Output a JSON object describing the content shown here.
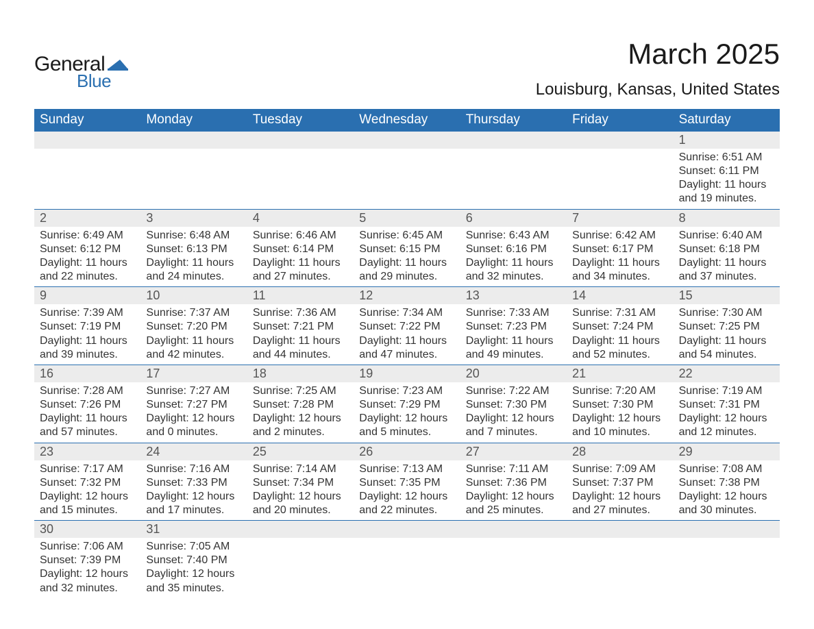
{
  "logo": {
    "text_general": "General",
    "text_blue": "Blue",
    "mark_color": "#2a6fb0",
    "text_general_color": "#1a1a1a",
    "text_blue_color": "#2a6fb0"
  },
  "header": {
    "title": "March 2025",
    "location": "Louisburg, Kansas, United States",
    "title_fontsize": 42,
    "location_fontsize": 24,
    "text_color": "#1a1a1a"
  },
  "calendar": {
    "header_bg": "#2a6fb0",
    "header_text_color": "#ffffff",
    "daynum_bg": "#ececec",
    "daynum_color": "#555555",
    "detail_color": "#333333",
    "week_border_color": "#2a6fb0",
    "background_color": "#ffffff",
    "day_names": [
      "Sunday",
      "Monday",
      "Tuesday",
      "Wednesday",
      "Thursday",
      "Friday",
      "Saturday"
    ],
    "weeks": [
      {
        "days": [
          {
            "num": "",
            "sunrise": "",
            "sunset": "",
            "daylight": ""
          },
          {
            "num": "",
            "sunrise": "",
            "sunset": "",
            "daylight": ""
          },
          {
            "num": "",
            "sunrise": "",
            "sunset": "",
            "daylight": ""
          },
          {
            "num": "",
            "sunrise": "",
            "sunset": "",
            "daylight": ""
          },
          {
            "num": "",
            "sunrise": "",
            "sunset": "",
            "daylight": ""
          },
          {
            "num": "",
            "sunrise": "",
            "sunset": "",
            "daylight": ""
          },
          {
            "num": "1",
            "sunrise": "Sunrise: 6:51 AM",
            "sunset": "Sunset: 6:11 PM",
            "daylight": "Daylight: 11 hours and 19 minutes."
          }
        ]
      },
      {
        "days": [
          {
            "num": "2",
            "sunrise": "Sunrise: 6:49 AM",
            "sunset": "Sunset: 6:12 PM",
            "daylight": "Daylight: 11 hours and 22 minutes."
          },
          {
            "num": "3",
            "sunrise": "Sunrise: 6:48 AM",
            "sunset": "Sunset: 6:13 PM",
            "daylight": "Daylight: 11 hours and 24 minutes."
          },
          {
            "num": "4",
            "sunrise": "Sunrise: 6:46 AM",
            "sunset": "Sunset: 6:14 PM",
            "daylight": "Daylight: 11 hours and 27 minutes."
          },
          {
            "num": "5",
            "sunrise": "Sunrise: 6:45 AM",
            "sunset": "Sunset: 6:15 PM",
            "daylight": "Daylight: 11 hours and 29 minutes."
          },
          {
            "num": "6",
            "sunrise": "Sunrise: 6:43 AM",
            "sunset": "Sunset: 6:16 PM",
            "daylight": "Daylight: 11 hours and 32 minutes."
          },
          {
            "num": "7",
            "sunrise": "Sunrise: 6:42 AM",
            "sunset": "Sunset: 6:17 PM",
            "daylight": "Daylight: 11 hours and 34 minutes."
          },
          {
            "num": "8",
            "sunrise": "Sunrise: 6:40 AM",
            "sunset": "Sunset: 6:18 PM",
            "daylight": "Daylight: 11 hours and 37 minutes."
          }
        ]
      },
      {
        "days": [
          {
            "num": "9",
            "sunrise": "Sunrise: 7:39 AM",
            "sunset": "Sunset: 7:19 PM",
            "daylight": "Daylight: 11 hours and 39 minutes."
          },
          {
            "num": "10",
            "sunrise": "Sunrise: 7:37 AM",
            "sunset": "Sunset: 7:20 PM",
            "daylight": "Daylight: 11 hours and 42 minutes."
          },
          {
            "num": "11",
            "sunrise": "Sunrise: 7:36 AM",
            "sunset": "Sunset: 7:21 PM",
            "daylight": "Daylight: 11 hours and 44 minutes."
          },
          {
            "num": "12",
            "sunrise": "Sunrise: 7:34 AM",
            "sunset": "Sunset: 7:22 PM",
            "daylight": "Daylight: 11 hours and 47 minutes."
          },
          {
            "num": "13",
            "sunrise": "Sunrise: 7:33 AM",
            "sunset": "Sunset: 7:23 PM",
            "daylight": "Daylight: 11 hours and 49 minutes."
          },
          {
            "num": "14",
            "sunrise": "Sunrise: 7:31 AM",
            "sunset": "Sunset: 7:24 PM",
            "daylight": "Daylight: 11 hours and 52 minutes."
          },
          {
            "num": "15",
            "sunrise": "Sunrise: 7:30 AM",
            "sunset": "Sunset: 7:25 PM",
            "daylight": "Daylight: 11 hours and 54 minutes."
          }
        ]
      },
      {
        "days": [
          {
            "num": "16",
            "sunrise": "Sunrise: 7:28 AM",
            "sunset": "Sunset: 7:26 PM",
            "daylight": "Daylight: 11 hours and 57 minutes."
          },
          {
            "num": "17",
            "sunrise": "Sunrise: 7:27 AM",
            "sunset": "Sunset: 7:27 PM",
            "daylight": "Daylight: 12 hours and 0 minutes."
          },
          {
            "num": "18",
            "sunrise": "Sunrise: 7:25 AM",
            "sunset": "Sunset: 7:28 PM",
            "daylight": "Daylight: 12 hours and 2 minutes."
          },
          {
            "num": "19",
            "sunrise": "Sunrise: 7:23 AM",
            "sunset": "Sunset: 7:29 PM",
            "daylight": "Daylight: 12 hours and 5 minutes."
          },
          {
            "num": "20",
            "sunrise": "Sunrise: 7:22 AM",
            "sunset": "Sunset: 7:30 PM",
            "daylight": "Daylight: 12 hours and 7 minutes."
          },
          {
            "num": "21",
            "sunrise": "Sunrise: 7:20 AM",
            "sunset": "Sunset: 7:30 PM",
            "daylight": "Daylight: 12 hours and 10 minutes."
          },
          {
            "num": "22",
            "sunrise": "Sunrise: 7:19 AM",
            "sunset": "Sunset: 7:31 PM",
            "daylight": "Daylight: 12 hours and 12 minutes."
          }
        ]
      },
      {
        "days": [
          {
            "num": "23",
            "sunrise": "Sunrise: 7:17 AM",
            "sunset": "Sunset: 7:32 PM",
            "daylight": "Daylight: 12 hours and 15 minutes."
          },
          {
            "num": "24",
            "sunrise": "Sunrise: 7:16 AM",
            "sunset": "Sunset: 7:33 PM",
            "daylight": "Daylight: 12 hours and 17 minutes."
          },
          {
            "num": "25",
            "sunrise": "Sunrise: 7:14 AM",
            "sunset": "Sunset: 7:34 PM",
            "daylight": "Daylight: 12 hours and 20 minutes."
          },
          {
            "num": "26",
            "sunrise": "Sunrise: 7:13 AM",
            "sunset": "Sunset: 7:35 PM",
            "daylight": "Daylight: 12 hours and 22 minutes."
          },
          {
            "num": "27",
            "sunrise": "Sunrise: 7:11 AM",
            "sunset": "Sunset: 7:36 PM",
            "daylight": "Daylight: 12 hours and 25 minutes."
          },
          {
            "num": "28",
            "sunrise": "Sunrise: 7:09 AM",
            "sunset": "Sunset: 7:37 PM",
            "daylight": "Daylight: 12 hours and 27 minutes."
          },
          {
            "num": "29",
            "sunrise": "Sunrise: 7:08 AM",
            "sunset": "Sunset: 7:38 PM",
            "daylight": "Daylight: 12 hours and 30 minutes."
          }
        ]
      },
      {
        "days": [
          {
            "num": "30",
            "sunrise": "Sunrise: 7:06 AM",
            "sunset": "Sunset: 7:39 PM",
            "daylight": "Daylight: 12 hours and 32 minutes."
          },
          {
            "num": "31",
            "sunrise": "Sunrise: 7:05 AM",
            "sunset": "Sunset: 7:40 PM",
            "daylight": "Daylight: 12 hours and 35 minutes."
          },
          {
            "num": "",
            "sunrise": "",
            "sunset": "",
            "daylight": ""
          },
          {
            "num": "",
            "sunrise": "",
            "sunset": "",
            "daylight": ""
          },
          {
            "num": "",
            "sunrise": "",
            "sunset": "",
            "daylight": ""
          },
          {
            "num": "",
            "sunrise": "",
            "sunset": "",
            "daylight": ""
          },
          {
            "num": "",
            "sunrise": "",
            "sunset": "",
            "daylight": ""
          }
        ]
      }
    ]
  }
}
